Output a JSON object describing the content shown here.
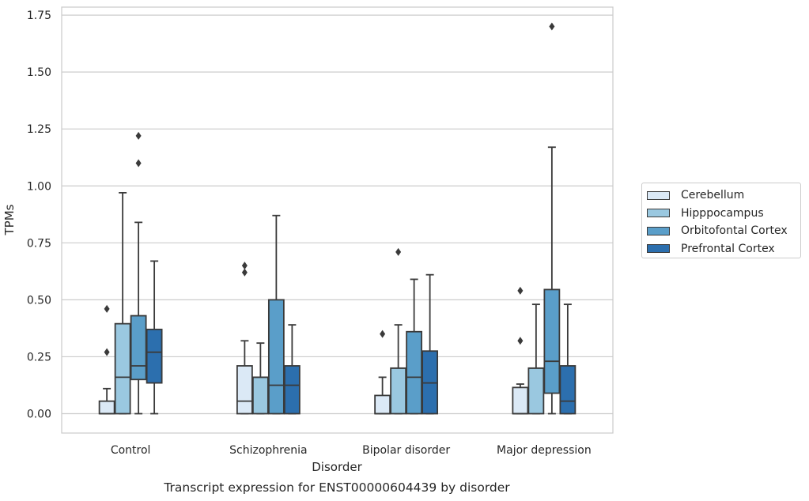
{
  "chart_data": {
    "type": "box",
    "title": "Transcript expression for ENST00000604439 by disorder",
    "xlabel": "Disorder",
    "ylabel": "TPMs",
    "ylim": [
      -0.085,
      1.785
    ],
    "yticks": [
      "0.00",
      "0.25",
      "0.50",
      "0.75",
      "1.00",
      "1.25",
      "1.50",
      "1.75"
    ],
    "grid": true,
    "legend_position": "right",
    "categories": [
      "Control",
      "Schizophrenia",
      "Bipolar disorder",
      "Major depression"
    ],
    "series": [
      {
        "name": "Cerebellum",
        "color": "#dbe9f6",
        "boxes": [
          {
            "q1": 0.0,
            "median": 0.0,
            "q3": 0.055,
            "whisker_low": 0.0,
            "whisker_high": 0.11,
            "outliers": [
              0.46,
              0.27
            ]
          },
          {
            "q1": 0.0,
            "median": 0.055,
            "q3": 0.21,
            "whisker_low": 0.0,
            "whisker_high": 0.32,
            "outliers": [
              0.65,
              0.62
            ]
          },
          {
            "q1": 0.0,
            "median": 0.0,
            "q3": 0.08,
            "whisker_low": 0.0,
            "whisker_high": 0.16,
            "outliers": [
              0.35
            ]
          },
          {
            "q1": 0.0,
            "median": 0.0,
            "q3": 0.115,
            "whisker_low": 0.0,
            "whisker_high": 0.13,
            "outliers": [
              0.54,
              0.32
            ]
          }
        ]
      },
      {
        "name": "Hipppocampus",
        "color": "#9ac8e0",
        "boxes": [
          {
            "q1": 0.0,
            "median": 0.16,
            "q3": 0.395,
            "whisker_low": 0.0,
            "whisker_high": 0.97,
            "outliers": []
          },
          {
            "q1": 0.0,
            "median": 0.16,
            "q3": 0.16,
            "whisker_low": 0.0,
            "whisker_high": 0.31,
            "outliers": []
          },
          {
            "q1": 0.0,
            "median": 0.2,
            "q3": 0.2,
            "whisker_low": 0.0,
            "whisker_high": 0.39,
            "outliers": [
              0.71
            ]
          },
          {
            "q1": 0.0,
            "median": 0.2,
            "q3": 0.2,
            "whisker_low": 0.0,
            "whisker_high": 0.48,
            "outliers": []
          }
        ]
      },
      {
        "name": "Orbitofontal Cortex",
        "color": "#5a9ec9",
        "boxes": [
          {
            "q1": 0.15,
            "median": 0.21,
            "q3": 0.43,
            "whisker_low": 0.0,
            "whisker_high": 0.84,
            "outliers": [
              1.22,
              1.1
            ]
          },
          {
            "q1": 0.0,
            "median": 0.125,
            "q3": 0.5,
            "whisker_low": 0.0,
            "whisker_high": 0.87,
            "outliers": []
          },
          {
            "q1": 0.0,
            "median": 0.16,
            "q3": 0.36,
            "whisker_low": 0.0,
            "whisker_high": 0.59,
            "outliers": []
          },
          {
            "q1": 0.09,
            "median": 0.23,
            "q3": 0.545,
            "whisker_low": 0.0,
            "whisker_high": 1.17,
            "outliers": [
              1.7
            ]
          }
        ]
      },
      {
        "name": "Prefrontal Cortex",
        "color": "#2c6fae",
        "boxes": [
          {
            "q1": 0.135,
            "median": 0.27,
            "q3": 0.37,
            "whisker_low": 0.0,
            "whisker_high": 0.67,
            "outliers": []
          },
          {
            "q1": 0.0,
            "median": 0.125,
            "q3": 0.21,
            "whisker_low": 0.0,
            "whisker_high": 0.39,
            "outliers": []
          },
          {
            "q1": 0.0,
            "median": 0.135,
            "q3": 0.275,
            "whisker_low": 0.0,
            "whisker_high": 0.61,
            "outliers": []
          },
          {
            "q1": 0.0,
            "median": 0.055,
            "q3": 0.21,
            "whisker_low": 0.0,
            "whisker_high": 0.48,
            "outliers": []
          }
        ]
      }
    ]
  }
}
